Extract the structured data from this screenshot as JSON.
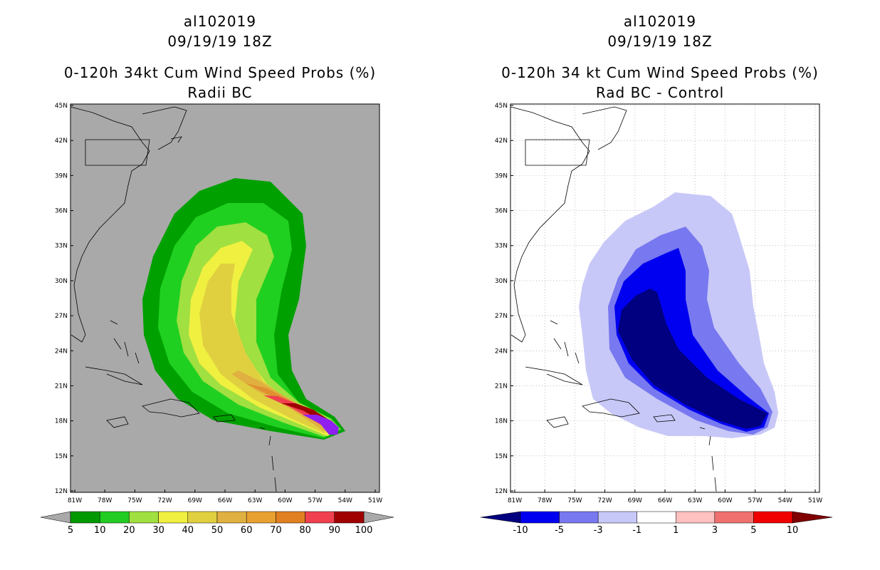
{
  "left_panel": {
    "storm_id": "al102019",
    "datetime": "09/19/19 18Z",
    "product": "0-120h 34kt Cum Wind Speed Probs (%)",
    "subtitle": "Radii BC",
    "colors": {
      "background": "#a9a9a9",
      "p5": "#00a000",
      "p10": "#20d020",
      "p20": "#a0e040",
      "p30": "#f0f040",
      "p40": "#e0d040",
      "p50": "#e0b040",
      "p60": "#e09030",
      "p70": "#f04050",
      "p80": "#a00000",
      "p90": "#9020f0"
    },
    "colorbar": {
      "labels": [
        "5",
        "10",
        "20",
        "30",
        "40",
        "50",
        "60",
        "70",
        "80",
        "90",
        "100"
      ],
      "colors": [
        "#009900",
        "#22cc22",
        "#a0e040",
        "#f0f040",
        "#e0d040",
        "#e0b040",
        "#e8a030",
        "#e08020",
        "#f04050",
        "#a00000",
        "#9020f0"
      ]
    }
  },
  "right_panel": {
    "storm_id": "al102019",
    "datetime": "09/19/19 18Z",
    "product": "0-120h 34 kt Cum Wind Speed Probs (%)",
    "subtitle": "Rad BC - Control",
    "colors": {
      "background": "#ffffff",
      "n1": "#c8c8f8",
      "n3": "#7878f0",
      "n5": "#0000f0",
      "n10": "#000080"
    },
    "colorbar": {
      "labels": [
        "-10",
        "-5",
        "-3",
        "-1",
        "1",
        "3",
        "5",
        "10"
      ],
      "colors": [
        "#000080",
        "#0000f0",
        "#7878f0",
        "#c8c8f8",
        "#ffffff",
        "#ffc0c0",
        "#f07070",
        "#f00000",
        "#800000"
      ]
    }
  },
  "axes": {
    "lat_labels": [
      "45N",
      "42N",
      "39N",
      "36N",
      "33N",
      "30N",
      "27N",
      "24N",
      "21N",
      "18N",
      "15N",
      "12N"
    ],
    "lon_labels": [
      "81W",
      "78W",
      "75W",
      "72W",
      "69W",
      "66W",
      "63W",
      "60W",
      "57W",
      "54W",
      "51W"
    ]
  }
}
